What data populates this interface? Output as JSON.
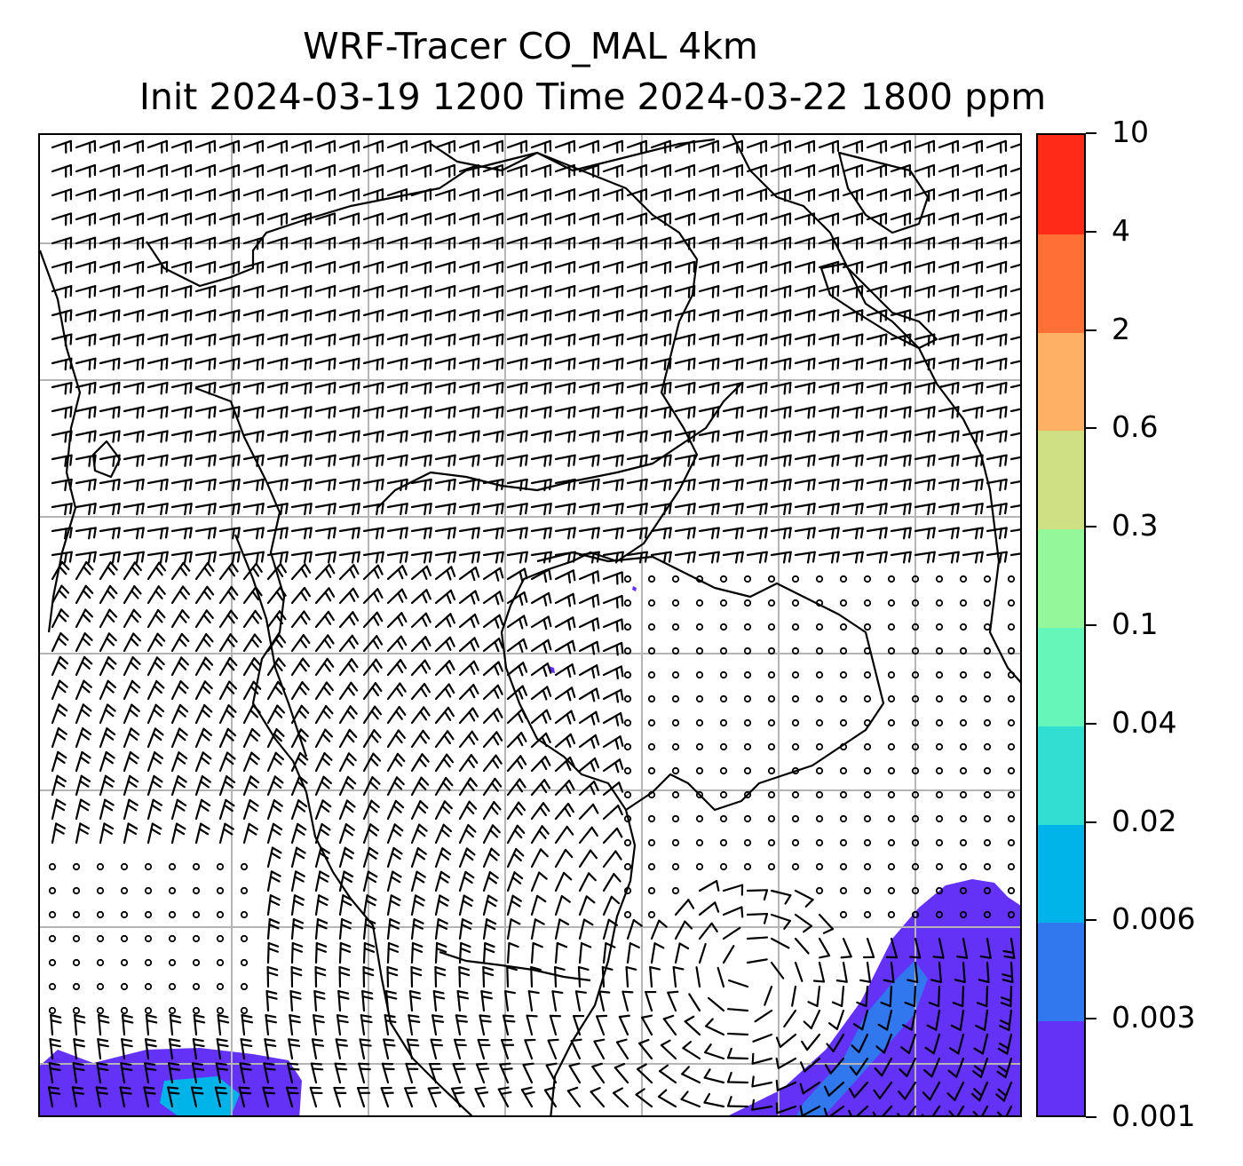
{
  "title": {
    "line1": "WRF-Tracer CO_MAL 4km",
    "line2": "Init 2024-03-19 1200 Time 2024-03-22 1800 ppm"
  },
  "map": {
    "field": "CO_MAL tracer concentration (filled contours) with wind barbs",
    "background_color": "#ffffff",
    "gridline_color": "#b5b5b5",
    "coastline_color": "#000000",
    "barb_color": "#000000"
  },
  "colorbar": {
    "levels": [
      "0.001",
      "0.003",
      "0.006",
      "0.02",
      "0.04",
      "0.1",
      "0.3",
      "0.6",
      "2",
      "4",
      "10"
    ],
    "colors": [
      "#6431f6",
      "#3178ef",
      "#00b4ea",
      "#30dfd2",
      "#65f6ba",
      "#94f79a",
      "#cfdf83",
      "#feb065",
      "#ff6f36",
      "#ff2a18"
    ]
  }
}
